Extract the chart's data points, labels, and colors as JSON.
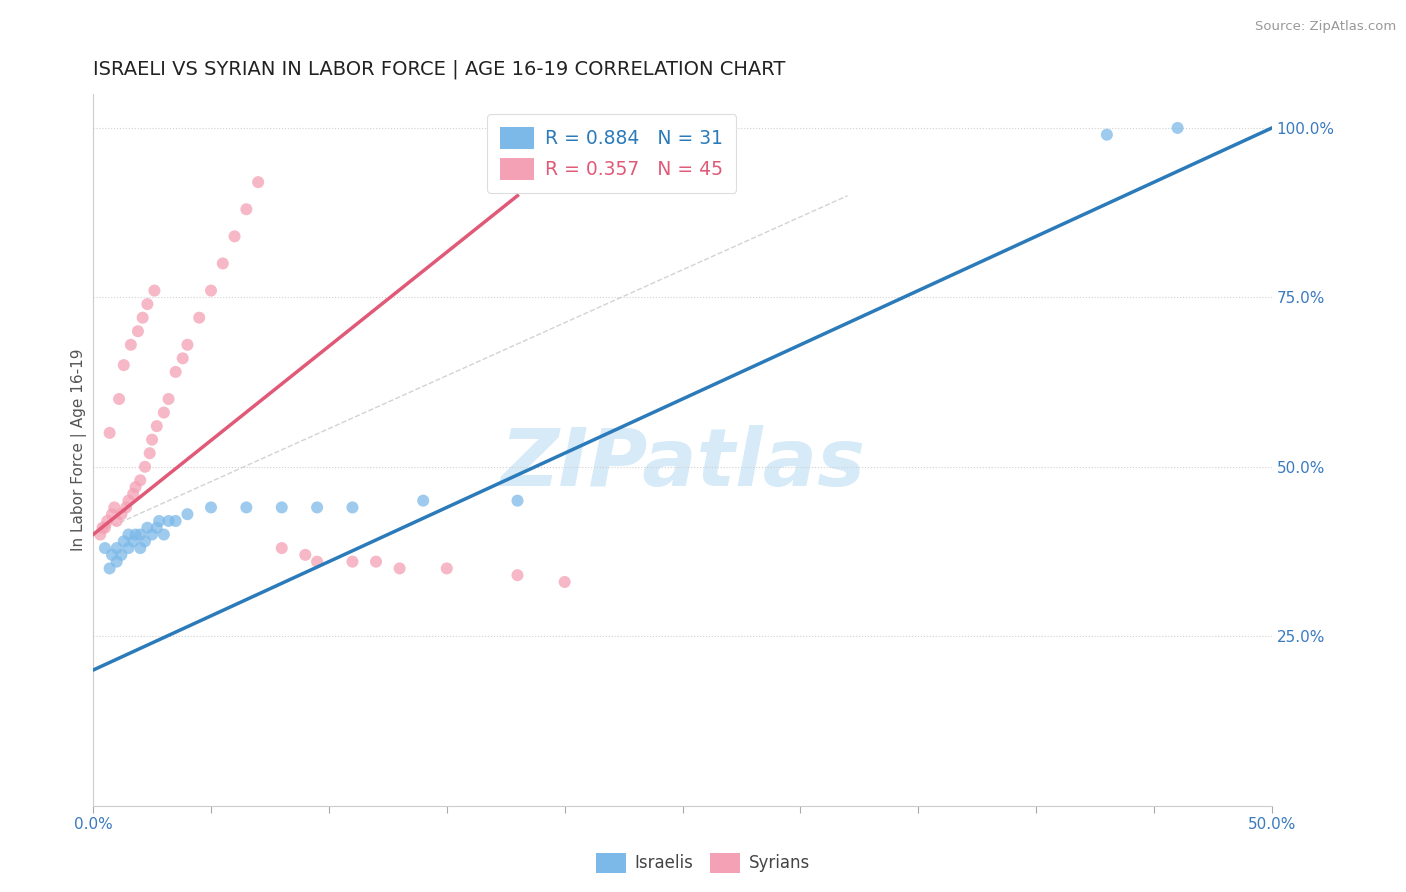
{
  "title": "ISRAELI VS SYRIAN IN LABOR FORCE | AGE 16-19 CORRELATION CHART",
  "source": "Source: ZipAtlas.com",
  "ylabel": "In Labor Force | Age 16-19",
  "xlim": [
    0.0,
    0.5
  ],
  "ylim": [
    0.0,
    1.05
  ],
  "xtick_positions": [
    0.0,
    0.05,
    0.1,
    0.15,
    0.2,
    0.25,
    0.3,
    0.35,
    0.4,
    0.45,
    0.5
  ],
  "yticks_right": [
    0.25,
    0.5,
    0.75,
    1.0
  ],
  "yticklabels_right": [
    "25.0%",
    "50.0%",
    "75.0%",
    "100.0%"
  ],
  "israeli_color": "#7cb9e8",
  "syrian_color": "#f4a0b5",
  "israeli_R": 0.884,
  "israeli_N": 31,
  "syrian_R": 0.357,
  "syrian_N": 45,
  "israeli_line_color": "#2b7bba",
  "syrian_line_color": "#e05a78",
  "ref_line_color": "#c8c8c8",
  "background_color": "#ffffff",
  "watermark_text": "ZIPatlas",
  "watermark_color": "#d6eaf8",
  "legend_color_israeli": "#2b7bba",
  "legend_color_syrian": "#e05a78",
  "israeli_points_x": [
    0.005,
    0.007,
    0.008,
    0.01,
    0.01,
    0.012,
    0.013,
    0.015,
    0.015,
    0.017,
    0.018,
    0.02,
    0.02,
    0.022,
    0.023,
    0.025,
    0.027,
    0.028,
    0.03,
    0.032,
    0.035,
    0.04,
    0.05,
    0.065,
    0.08,
    0.095,
    0.11,
    0.14,
    0.18,
    0.43,
    0.46
  ],
  "israeli_points_y": [
    0.38,
    0.35,
    0.37,
    0.36,
    0.38,
    0.37,
    0.39,
    0.38,
    0.4,
    0.39,
    0.4,
    0.38,
    0.4,
    0.39,
    0.41,
    0.4,
    0.41,
    0.42,
    0.4,
    0.42,
    0.42,
    0.43,
    0.44,
    0.44,
    0.44,
    0.44,
    0.44,
    0.45,
    0.45,
    0.99,
    1.0
  ],
  "syrian_points_x": [
    0.003,
    0.004,
    0.005,
    0.006,
    0.007,
    0.008,
    0.009,
    0.01,
    0.011,
    0.012,
    0.013,
    0.014,
    0.015,
    0.016,
    0.017,
    0.018,
    0.019,
    0.02,
    0.021,
    0.022,
    0.023,
    0.024,
    0.025,
    0.026,
    0.027,
    0.03,
    0.032,
    0.035,
    0.038,
    0.04,
    0.045,
    0.05,
    0.055,
    0.06,
    0.065,
    0.07,
    0.08,
    0.09,
    0.095,
    0.11,
    0.12,
    0.13,
    0.15,
    0.18,
    0.2
  ],
  "syrian_points_y": [
    0.4,
    0.41,
    0.41,
    0.42,
    0.55,
    0.43,
    0.44,
    0.42,
    0.6,
    0.43,
    0.65,
    0.44,
    0.45,
    0.68,
    0.46,
    0.47,
    0.7,
    0.48,
    0.72,
    0.5,
    0.74,
    0.52,
    0.54,
    0.76,
    0.56,
    0.58,
    0.6,
    0.64,
    0.66,
    0.68,
    0.72,
    0.76,
    0.8,
    0.84,
    0.88,
    0.92,
    0.38,
    0.37,
    0.36,
    0.36,
    0.36,
    0.35,
    0.35,
    0.34,
    0.33
  ],
  "israeli_line_x": [
    0.0,
    0.5
  ],
  "israeli_line_y": [
    0.2,
    1.0
  ],
  "syrian_line_x": [
    0.0,
    0.18
  ],
  "syrian_line_y": [
    0.4,
    0.9
  ],
  "ref_line_x": [
    0.0,
    0.32
  ],
  "ref_line_y": [
    0.4,
    0.9
  ]
}
